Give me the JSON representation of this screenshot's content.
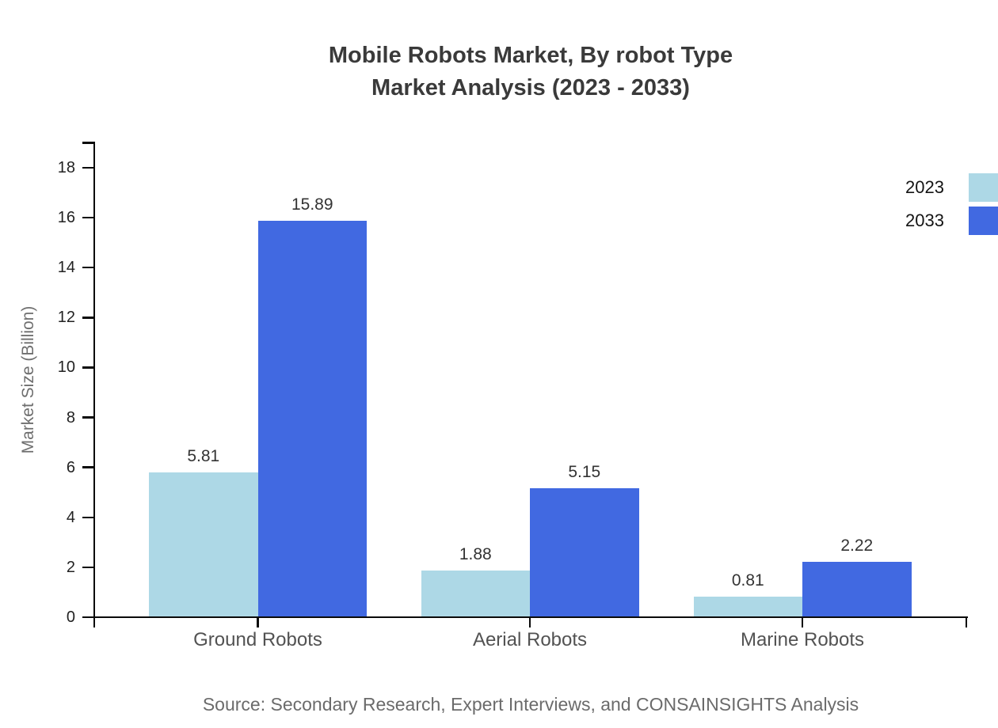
{
  "title": {
    "line1": "Mobile Robots Market, By robot Type",
    "line2": "Market Analysis (2023 - 2033)"
  },
  "source_note": "Source: Secondary Research, Expert Interviews, and CONSAINSIGHTS Analysis",
  "chart_data": {
    "type": "bar",
    "title": "Mobile Robots Market, By robot Type — Market Analysis (2023 - 2033)",
    "categories": [
      "Ground Robots",
      "Aerial Robots",
      "Marine Robots"
    ],
    "series": [
      {
        "name": "2023",
        "color": "#ADD8E6",
        "values": [
          5.81,
          1.88,
          0.81
        ]
      },
      {
        "name": "2033",
        "color": "#4169E1",
        "values": [
          15.89,
          5.15,
          2.22
        ]
      }
    ],
    "xlabel": "",
    "ylabel": "Market Size (Billion)",
    "ylim": [
      0,
      18
    ],
    "yticks": [
      0,
      2,
      4,
      6,
      8,
      10,
      12,
      14,
      16,
      18
    ],
    "grid": false,
    "legend_position": "top-right",
    "bar_value_labels": [
      "5.81",
      "1.88",
      "0.81",
      "15.89",
      "5.15",
      "2.22"
    ],
    "axis_color": "#0a0a0a"
  }
}
